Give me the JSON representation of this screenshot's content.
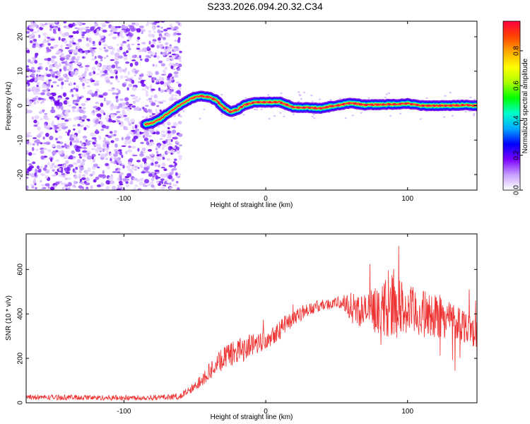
{
  "title": "S233.2026.094.20.32.C34",
  "chart_data": [
    {
      "type": "heatmap",
      "name": "spectrogram",
      "xlabel": "Height of straight line (km)",
      "ylabel": "Frequency (Hz)",
      "xlim": [
        -169,
        149
      ],
      "ylim": [
        -24.5,
        24.5
      ],
      "x_ticks": [
        "-100",
        "0",
        "100"
      ],
      "x_tick_values": [
        -100,
        0,
        100
      ],
      "y_ticks": [
        "-20",
        "-10",
        "0",
        "10",
        "20"
      ],
      "y_tick_values": [
        -20,
        -10,
        0,
        10,
        20
      ],
      "noise_region_x": [
        -169,
        -60
      ],
      "ridge": {
        "x": [
          -85,
          -80,
          -75,
          -70,
          -65,
          -60,
          -55,
          -50,
          -45,
          -40,
          -35,
          -30,
          -25,
          -20,
          -15,
          -10,
          -5,
          0,
          10,
          20,
          30,
          40,
          45,
          50,
          60,
          70,
          80,
          90,
          100,
          110,
          120,
          130,
          140,
          149
        ],
        "freq": [
          -5.5,
          -5.0,
          -4.0,
          -2.5,
          -1.0,
          0.3,
          1.5,
          2.5,
          2.8,
          2.5,
          1.6,
          -0.5,
          -1.8,
          -1.2,
          0.2,
          0.8,
          1.0,
          1.0,
          1.0,
          -0.5,
          -0.6,
          -0.8,
          -0.2,
          0.0,
          0.8,
          0.2,
          0.3,
          0.4,
          0.6,
          0.0,
          0.0,
          0.0,
          0.2,
          0.0
        ]
      },
      "colorbar": {
        "label": "Normalized spectral amplitude",
        "range": [
          0,
          0.97
        ],
        "ticks": [
          "0.0",
          "0.2",
          "0.4",
          "0.6",
          "0.8"
        ],
        "tick_values": [
          0.0,
          0.2,
          0.4,
          0.6,
          0.8
        ],
        "colors": [
          "#ffffff",
          "#c8a0ff",
          "#7a00ff",
          "#0000ff",
          "#00aaff",
          "#00ffcc",
          "#00ff00",
          "#aaff00",
          "#ffff00",
          "#ffaa00",
          "#ff4400",
          "#ff0040"
        ]
      }
    },
    {
      "type": "line",
      "name": "snr",
      "xlabel": "Height of straight line (km)",
      "ylabel": "SNR (10 * v/v)",
      "xlim": [
        -169,
        149
      ],
      "ylim": [
        0,
        760
      ],
      "x_ticks": [
        "-100",
        "0",
        "100"
      ],
      "x_tick_values": [
        -100,
        0,
        100
      ],
      "y_ticks": [
        "0",
        "200",
        "400",
        "600"
      ],
      "y_tick_values": [
        0,
        200,
        400,
        600
      ],
      "line_color": "#ee3333",
      "envelope": {
        "x": [
          -169,
          -150,
          -100,
          -70,
          -60,
          -50,
          -45,
          -40,
          -30,
          -20,
          -10,
          0,
          10,
          20,
          30,
          40,
          50,
          55,
          60,
          70,
          80,
          90,
          100,
          110,
          120,
          130,
          140,
          149
        ],
        "mean": [
          25,
          25,
          22,
          25,
          30,
          70,
          110,
          140,
          200,
          230,
          260,
          290,
          330,
          390,
          420,
          440,
          450,
          450,
          430,
          410,
          420,
          440,
          410,
          400,
          390,
          380,
          350,
          320
        ],
        "spread": [
          12,
          12,
          12,
          12,
          15,
          25,
          35,
          40,
          50,
          60,
          55,
          50,
          45,
          40,
          30,
          25,
          25,
          40,
          70,
          80,
          110,
          150,
          120,
          110,
          100,
          90,
          80,
          70
        ]
      }
    }
  ]
}
